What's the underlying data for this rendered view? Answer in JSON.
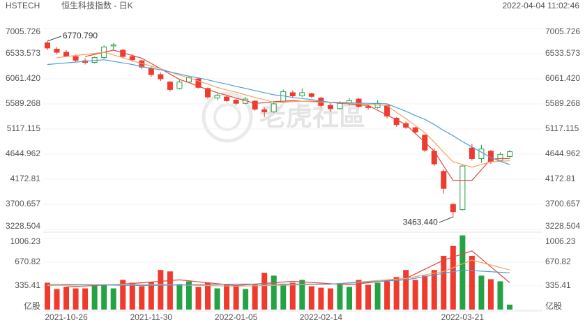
{
  "header": {
    "symbol": "HSTECH",
    "name": "恒生科技指数 - 日K",
    "timestamp": "2022-04-04 11:02:46"
  },
  "watermark": "老虎社區",
  "chart_data": [
    {
      "type": "candlestick",
      "categories": [
        null,
        null,
        "2021-10-26",
        null,
        null,
        null,
        null,
        null,
        null,
        null,
        null,
        "2021-11-30",
        null,
        null,
        null,
        null,
        null,
        null,
        null,
        null,
        "2022-01-05",
        null,
        null,
        null,
        null,
        null,
        null,
        null,
        null,
        "2022-02-14",
        null,
        null,
        null,
        null,
        null,
        null,
        null,
        null,
        null,
        null,
        null,
        null,
        null,
        null,
        "2022-03-21",
        null,
        null,
        null,
        null,
        null
      ],
      "open": [
        6740,
        6620,
        6560,
        6480,
        6400,
        6370,
        6460,
        6680,
        6600,
        6480,
        6400,
        6260,
        6140,
        6000,
        5880,
        6000,
        6060,
        5880,
        5700,
        5720,
        5660,
        5600,
        5640,
        5480,
        5440,
        5620,
        5800,
        5740,
        5780,
        5700,
        5560,
        5500,
        5600,
        5680,
        5540,
        5520,
        5560,
        5320,
        5220,
        5140,
        5000,
        4700,
        4320,
        3700,
        3600,
        4760,
        4560,
        4700,
        4520,
        4600
      ],
      "high": [
        6770.79,
        6660,
        6600,
        6520,
        6450,
        6480,
        6690,
        6740,
        6620,
        6520,
        6420,
        6300,
        6180,
        6020,
        6040,
        6120,
        6080,
        5900,
        5780,
        5740,
        5700,
        5720,
        5660,
        5520,
        5620,
        5860,
        5840,
        5880,
        5800,
        5720,
        5600,
        5640,
        5700,
        5700,
        5580,
        5660,
        5580,
        5340,
        5260,
        5160,
        5020,
        4760,
        4360,
        3720,
        4440,
        4840,
        4820,
        4720,
        4680,
        4720
      ],
      "low": [
        6600,
        6520,
        6470,
        6380,
        6330,
        6350,
        6440,
        6600,
        6440,
        6380,
        6240,
        6100,
        6020,
        5820,
        5860,
        5980,
        5880,
        5680,
        5660,
        5620,
        5560,
        5580,
        5460,
        5340,
        5420,
        5600,
        5700,
        5720,
        5700,
        5520,
        5440,
        5480,
        5560,
        5520,
        5480,
        5500,
        5320,
        5160,
        5120,
        5020,
        4680,
        4420,
        3900,
        3463.44,
        3580,
        4520,
        4480,
        4460,
        4500,
        4580
      ],
      "close": [
        6640,
        6560,
        6490,
        6410,
        6370,
        6460,
        6660,
        6700,
        6480,
        6420,
        6280,
        6140,
        6060,
        5860,
        6000,
        6080,
        5900,
        5720,
        5750,
        5650,
        5600,
        5680,
        5490,
        5440,
        5590,
        5820,
        5740,
        5800,
        5730,
        5560,
        5500,
        5600,
        5650,
        5540,
        5520,
        5600,
        5360,
        5200,
        5150,
        5060,
        4720,
        4460,
        4000,
        3560,
        4420,
        4560,
        4740,
        4500,
        4640,
        4690
      ],
      "ylim": [
        3228.504,
        7005.726
      ],
      "yticks": [
        3228.504,
        3700.657,
        4172.81,
        4644.962,
        5117.115,
        5589.268,
        {
          "value": 6061.42,
          "label": "6061.420"
        },
        6533.573,
        7005.726
      ],
      "up_color": "#25a244",
      "down_color": "#ee3b2e",
      "lines": [
        {
          "color": "#e2463d",
          "values": [
            null,
            null,
            null,
            null,
            6480,
            6520,
            6560,
            6600,
            6550,
            6500,
            6450,
            6350,
            6250,
            6150,
            6050,
            5990,
            5920,
            5860,
            5800,
            5750,
            5700,
            5650,
            5600,
            5610,
            5630,
            5640,
            5650,
            5640,
            5640,
            5630,
            5620,
            5600,
            5590,
            5570,
            5560,
            5470,
            5380,
            5290,
            5200,
            5030,
            4870,
            4700,
            4420,
            4150,
            4150,
            4150,
            4350,
            4550,
            4560,
            4560
          ]
        },
        {
          "color": "#f4a261",
          "values": [
            null,
            6460,
            6480,
            6500,
            6520,
            6540,
            6560,
            6510,
            6460,
            6400,
            6350,
            6300,
            6250,
            6190,
            6130,
            6080,
            6020,
            5960,
            5900,
            5850,
            5810,
            5760,
            5710,
            5670,
            5620,
            5620,
            5630,
            5640,
            5630,
            5620,
            5620,
            5610,
            5600,
            5590,
            5580,
            5570,
            5560,
            5430,
            5310,
            5180,
            5050,
            4870,
            4680,
            4500,
            4450,
            4400,
            4450,
            4500,
            4510,
            4520
          ]
        },
        {
          "color": "#4f9fd8",
          "values": [
            6330,
            6345,
            6360,
            6375,
            6390,
            6405,
            6420,
            6390,
            6360,
            6330,
            6290,
            6260,
            6230,
            6190,
            6150,
            6110,
            6080,
            6040,
            6000,
            5960,
            5920,
            5880,
            5840,
            5800,
            5760,
            5740,
            5710,
            5690,
            5670,
            5640,
            5620,
            5615,
            5610,
            5605,
            5600,
            5595,
            5590,
            5520,
            5450,
            5370,
            5300,
            5200,
            5090,
            4990,
            4880,
            4780,
            4680,
            4580,
            4510,
            4450
          ]
        }
      ],
      "annotations": [
        {
          "value": 6770.79,
          "label": "6770.790"
        },
        {
          "value": 3463.44,
          "label": "3463.440"
        }
      ]
    },
    {
      "type": "bar",
      "values": [
        380,
        290,
        320,
        300,
        300,
        340,
        350,
        300,
        420,
        380,
        330,
        390,
        560,
        540,
        360,
        400,
        320,
        380,
        300,
        350,
        330,
        290,
        360,
        520,
        480,
        360,
        380,
        420,
        330,
        310,
        300,
        360,
        320,
        420,
        350,
        380,
        400,
        460,
        560,
        420,
        480,
        560,
        760,
        900,
        1050,
        760,
        480,
        430,
        400,
        70
      ],
      "ylim": [
        0,
        1006.23
      ],
      "yticks": [
        {
          "value": 0,
          "label": "亿股"
        },
        335.41,
        670.82,
        1006.23
      ],
      "lines": [
        {
          "color": "#e2463d",
          "values": [
            null,
            null,
            320,
            327,
            333,
            340,
            347,
            353,
            360,
            370,
            380,
            390,
            400,
            410,
            420,
            407,
            393,
            380,
            367,
            353,
            340,
            350,
            360,
            370,
            380,
            390,
            400,
            392,
            383,
            375,
            367,
            358,
            350,
            365,
            380,
            395,
            410,
            425,
            440,
            505,
            570,
            635,
            700,
            743,
            787,
            830,
            718,
            605,
            493,
            380
          ]
        },
        {
          "color": "#f4a261",
          "values": [
            340,
            342,
            344,
            346,
            348,
            350,
            352,
            354,
            356,
            358,
            360,
            357,
            354,
            351,
            348,
            345,
            342,
            339,
            336,
            333,
            330,
            333,
            336,
            339,
            342,
            345,
            348,
            351,
            354,
            357,
            360,
            370,
            380,
            390,
            400,
            410,
            420,
            430,
            440,
            465,
            490,
            515,
            540,
            593,
            647,
            700,
            665,
            630,
            595,
            560
          ]
        },
        {
          "color": "#4f9fd8",
          "values": [
            360,
            358,
            356,
            354,
            352,
            350,
            348,
            346,
            344,
            342,
            340,
            342,
            344,
            346,
            348,
            350,
            352,
            354,
            356,
            358,
            360,
            360,
            360,
            360,
            360,
            360,
            360,
            360,
            360,
            360,
            360,
            368,
            375,
            383,
            390,
            398,
            405,
            413,
            420,
            443,
            467,
            490,
            513,
            537,
            560,
            552,
            544,
            536,
            528,
            520
          ]
        }
      ]
    }
  ]
}
